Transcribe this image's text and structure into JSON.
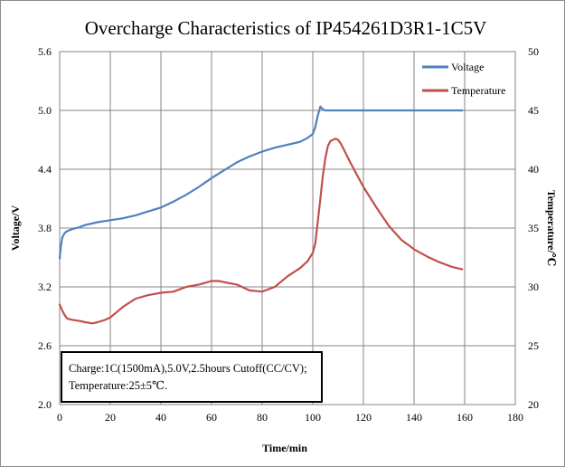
{
  "chart_data": {
    "type": "line",
    "title": "Overcharge Characteristics of  IP454261D3R1-1C5V",
    "xlabel": "Time/min",
    "ylabel": "Voltage/V",
    "y2label": "Temperature/℃",
    "xlim": [
      0,
      180
    ],
    "ylim": [
      2.0,
      5.6
    ],
    "y2lim": [
      20,
      50
    ],
    "xticks": [
      "0",
      "20",
      "40",
      "60",
      "80",
      "100",
      "120",
      "140",
      "160",
      "180"
    ],
    "yticks": [
      "2.0",
      "2.6",
      "3.2",
      "3.8",
      "4.4",
      "5.0",
      "5.6"
    ],
    "y2ticks": [
      "20",
      "25",
      "30",
      "35",
      "40",
      "45",
      "50"
    ],
    "grid": true,
    "legend_position": "top-right",
    "series": [
      {
        "name": "Voltage",
        "axis": "left",
        "color": "#4f81bd",
        "x": [
          0,
          0.5,
          1,
          2,
          3,
          5,
          8,
          10,
          15,
          20,
          25,
          30,
          35,
          40,
          45,
          50,
          55,
          60,
          65,
          70,
          75,
          80,
          85,
          90,
          95,
          98,
          100,
          101,
          102,
          103,
          104,
          105,
          110,
          120,
          130,
          140,
          150,
          159
        ],
        "values": [
          3.49,
          3.62,
          3.7,
          3.75,
          3.77,
          3.79,
          3.81,
          3.83,
          3.86,
          3.88,
          3.9,
          3.93,
          3.97,
          4.01,
          4.07,
          4.14,
          4.22,
          4.31,
          4.39,
          4.47,
          4.53,
          4.58,
          4.62,
          4.65,
          4.68,
          4.72,
          4.76,
          4.83,
          4.95,
          5.04,
          5.01,
          5.0,
          5.0,
          5.0,
          5.0,
          5.0,
          5.0,
          5.0
        ]
      },
      {
        "name": "Temperature",
        "axis": "right",
        "color": "#c0504d",
        "x": [
          0,
          1,
          2,
          3,
          5,
          8,
          10,
          13,
          15,
          18,
          20,
          25,
          30,
          35,
          40,
          45,
          50,
          55,
          60,
          63,
          65,
          70,
          75,
          80,
          85,
          90,
          95,
          98,
          100,
          101,
          102,
          103,
          104,
          105,
          106,
          107,
          108,
          109,
          110,
          111,
          112,
          115,
          120,
          125,
          130,
          135,
          140,
          145,
          150,
          155,
          159
        ],
        "values": [
          28.5,
          28.0,
          27.6,
          27.3,
          27.2,
          27.1,
          27.0,
          26.9,
          27.0,
          27.2,
          27.4,
          28.3,
          29.0,
          29.3,
          29.5,
          29.6,
          30.0,
          30.2,
          30.5,
          30.5,
          30.4,
          30.2,
          29.7,
          29.6,
          30.0,
          30.9,
          31.6,
          32.2,
          32.9,
          33.7,
          35.6,
          37.5,
          39.5,
          41.0,
          42.0,
          42.4,
          42.5,
          42.6,
          42.5,
          42.2,
          41.8,
          40.5,
          38.5,
          36.8,
          35.2,
          34.0,
          33.2,
          32.6,
          32.1,
          31.7,
          31.5
        ]
      }
    ],
    "annotation": {
      "line1": "Charge:1C(1500mA),5.0V,2.5hours  Cutoff(CC/CV);",
      "line2": "Temperature:25±5℃."
    }
  }
}
